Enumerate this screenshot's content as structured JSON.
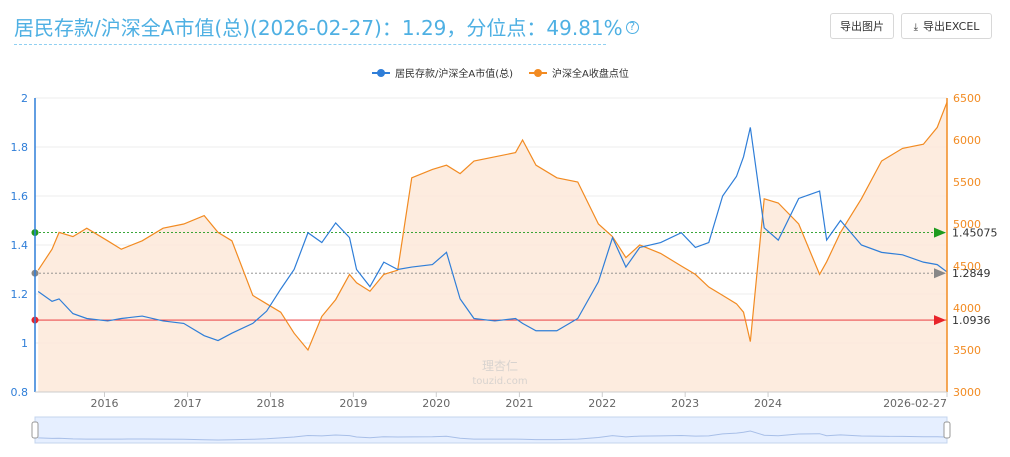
{
  "header": {
    "title": "居民存款/沪深全A市值(总)(2026-02-27)：1.29，分位点：49.81%",
    "help_icon": "?",
    "export_image_label": "导出图片",
    "export_excel_label": "导出EXCEL",
    "export_excel_icon": "⤓"
  },
  "watermark": {
    "logo_text": "理杏仁",
    "url_text": "touzid.com"
  },
  "colors": {
    "ratio": "#2f7ed8",
    "index": "#f28b22",
    "area": "#fde9d9",
    "high": "#1e9b1e",
    "mid": "#888888",
    "low": "#e8242a",
    "title": "#4eb0e3"
  },
  "chart_data": {
    "type": "line",
    "legend": [
      "居民存款/沪深全A市值(总)",
      "沪深全A收盘点位"
    ],
    "legend_placement": "top-center",
    "grid": true,
    "x_ticks": [
      "2016",
      "2017",
      "2018",
      "2019",
      "2020",
      "2021",
      "2022",
      "2023",
      "2024",
      "2026-02-27"
    ],
    "x_range": [
      "2015-03-01",
      "2026-02-27"
    ],
    "left_axis": {
      "ticks": [
        "0.8",
        "1",
        "1.2",
        "1.4",
        "1.6",
        "1.8",
        "2"
      ],
      "ylim": [
        0.8,
        2
      ]
    },
    "right_axis": {
      "ticks": [
        "3000",
        "3500",
        "4000",
        "4500",
        "5000",
        "5500",
        "6000",
        "6500"
      ],
      "ylim": [
        3000,
        6500
      ]
    },
    "reference_lines": [
      {
        "name": "high",
        "value": 1.45075,
        "label": "1.45075"
      },
      {
        "name": "median",
        "value": 1.2849,
        "label": "1.2849"
      },
      {
        "name": "low",
        "value": 1.0936,
        "label": "1.0936"
      }
    ],
    "series": [
      {
        "name": "居民存款/沪深全A市值(总)",
        "axis": "left",
        "x": [
          "2015-03",
          "2015-05",
          "2015-06",
          "2015-08",
          "2015-10",
          "2016-01",
          "2016-03",
          "2016-06",
          "2016-09",
          "2016-12",
          "2017-03",
          "2017-05",
          "2017-07",
          "2017-10",
          "2017-12",
          "2018-02",
          "2018-04",
          "2018-06",
          "2018-08",
          "2018-10",
          "2018-12",
          "2019-01",
          "2019-03",
          "2019-05",
          "2019-07",
          "2019-09",
          "2019-12",
          "2020-02",
          "2020-04",
          "2020-06",
          "2020-09",
          "2020-12",
          "2021-01",
          "2021-03",
          "2021-06",
          "2021-09",
          "2021-12",
          "2022-02",
          "2022-04",
          "2022-06",
          "2022-09",
          "2022-12",
          "2023-02",
          "2023-04",
          "2023-06",
          "2023-08",
          "2023-09",
          "2023-10",
          "2023-12",
          "2024-02",
          "2024-05",
          "2024-08",
          "2024-09",
          "2024-11",
          "2025-02",
          "2025-05",
          "2025-08",
          "2025-11",
          "2026-01",
          "2026-02-27"
        ],
        "y": [
          1.21,
          1.17,
          1.18,
          1.12,
          1.1,
          1.09,
          1.1,
          1.11,
          1.09,
          1.08,
          1.03,
          1.01,
          1.04,
          1.08,
          1.13,
          1.22,
          1.3,
          1.45,
          1.41,
          1.49,
          1.43,
          1.3,
          1.23,
          1.33,
          1.3,
          1.31,
          1.32,
          1.37,
          1.18,
          1.1,
          1.09,
          1.1,
          1.08,
          1.05,
          1.05,
          1.1,
          1.25,
          1.43,
          1.31,
          1.39,
          1.41,
          1.45,
          1.39,
          1.41,
          1.6,
          1.68,
          1.76,
          1.88,
          1.47,
          1.42,
          1.59,
          1.62,
          1.42,
          1.5,
          1.4,
          1.37,
          1.36,
          1.33,
          1.32,
          1.29
        ]
      },
      {
        "name": "沪深全A收盘点位",
        "axis": "right",
        "x": [
          "2015-03",
          "2015-05",
          "2015-06",
          "2015-08",
          "2015-10",
          "2016-01",
          "2016-03",
          "2016-06",
          "2016-09",
          "2016-12",
          "2017-03",
          "2017-05",
          "2017-07",
          "2017-10",
          "2017-12",
          "2018-02",
          "2018-04",
          "2018-06",
          "2018-08",
          "2018-10",
          "2018-12",
          "2019-01",
          "2019-03",
          "2019-05",
          "2019-07",
          "2019-09",
          "2019-12",
          "2020-02",
          "2020-04",
          "2020-06",
          "2020-09",
          "2020-12",
          "2021-01",
          "2021-03",
          "2021-06",
          "2021-09",
          "2021-12",
          "2022-02",
          "2022-04",
          "2022-06",
          "2022-09",
          "2022-12",
          "2023-02",
          "2023-04",
          "2023-06",
          "2023-08",
          "2023-09",
          "2023-10",
          "2023-12",
          "2024-02",
          "2024-05",
          "2024-08",
          "2024-09",
          "2024-11",
          "2025-02",
          "2025-05",
          "2025-08",
          "2025-11",
          "2026-01",
          "2026-02-27"
        ],
        "y": [
          4450,
          4700,
          4900,
          4850,
          4950,
          4800,
          4700,
          4800,
          4950,
          5000,
          5100,
          4900,
          4800,
          4150,
          4050,
          3950,
          3700,
          3500,
          3900,
          4100,
          4400,
          4300,
          4200,
          4400,
          4450,
          5550,
          5650,
          5700,
          5600,
          5750,
          5800,
          5850,
          6000,
          5700,
          5550,
          5500,
          5000,
          4850,
          4600,
          4750,
          4650,
          4500,
          4400,
          4250,
          4150,
          4050,
          3950,
          3600,
          5300,
          5250,
          5000,
          4400,
          4550,
          4900,
          5300,
          5750,
          5900,
          5950,
          6150,
          6450
        ]
      }
    ]
  }
}
